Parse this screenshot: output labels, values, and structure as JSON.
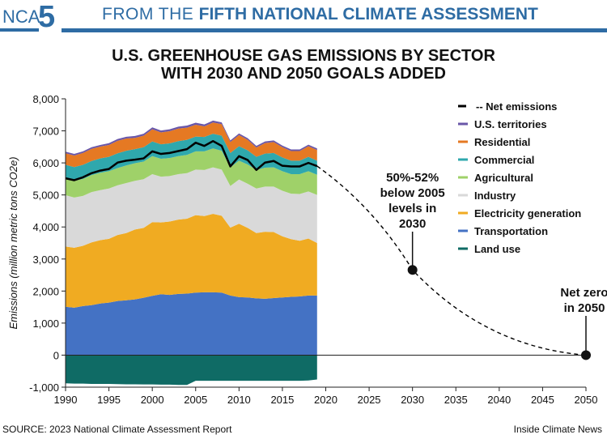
{
  "header": {
    "logo_text": "NCA",
    "logo_number": "5",
    "banner_prefix": "FROM THE ",
    "banner_bold": "FIFTH NATIONAL CLIMATE ASSESSMENT"
  },
  "footer": {
    "source": "SOURCE: 2023 National Climate Assessment Report",
    "credit": "Inside Climate News"
  },
  "chart_data": {
    "type": "area",
    "title_line1": "U.S. GREENHOUSE GAS EMISSIONS BY SECTOR",
    "title_line2": "WITH 2030 AND 2050 GOALS ADDED",
    "ylabel": "Emissions (million metric tons CO2e)",
    "xlabel": "",
    "xlim": [
      1990,
      2050
    ],
    "ylim": [
      -1000,
      8000
    ],
    "x_ticks": [
      1990,
      1995,
      2000,
      2005,
      2010,
      2015,
      2020,
      2025,
      2030,
      2035,
      2040,
      2045,
      2050
    ],
    "y_ticks": [
      {
        "value": -1000,
        "label": "-1,000"
      },
      {
        "value": 0,
        "label": "0"
      },
      {
        "value": 1000,
        "label": "1,000"
      },
      {
        "value": 2000,
        "label": "2,000"
      },
      {
        "value": 3000,
        "label": "3,000"
      },
      {
        "value": 4000,
        "label": "4,000"
      },
      {
        "value": 5000,
        "label": "5,000"
      },
      {
        "value": 6000,
        "label": "6,000"
      },
      {
        "value": 7000,
        "label": "7,000"
      },
      {
        "value": 8000,
        "label": "8,000"
      }
    ],
    "grid": false,
    "legend_position": "top-right",
    "years": [
      1990,
      1991,
      1992,
      1993,
      1994,
      1995,
      1996,
      1997,
      1998,
      1999,
      2000,
      2001,
      2002,
      2003,
      2004,
      2005,
      2006,
      2007,
      2008,
      2009,
      2010,
      2011,
      2012,
      2013,
      2014,
      2015,
      2016,
      2017,
      2018,
      2019
    ],
    "land_use": [
      -880,
      -890,
      -890,
      -900,
      -900,
      -900,
      -905,
      -910,
      -910,
      -915,
      -915,
      -920,
      -920,
      -930,
      -930,
      -800,
      -800,
      -800,
      -800,
      -800,
      -800,
      -800,
      -800,
      -800,
      -800,
      -800,
      -800,
      -800,
      -790,
      -760
    ],
    "series": [
      {
        "name": "Transportation",
        "color": "#4472c4",
        "values": [
          1510,
          1480,
          1530,
          1560,
          1610,
          1640,
          1690,
          1710,
          1740,
          1790,
          1850,
          1900,
          1880,
          1910,
          1920,
          1950,
          1960,
          1960,
          1950,
          1860,
          1810,
          1800,
          1770,
          1760,
          1780,
          1800,
          1820,
          1830,
          1860,
          1860
        ]
      },
      {
        "name": "Electricity generation",
        "color": "#f0ab22",
        "values": [
          1880,
          1870,
          1880,
          1960,
          1980,
          1990,
          2060,
          2100,
          2180,
          2180,
          2300,
          2240,
          2290,
          2320,
          2340,
          2420,
          2380,
          2450,
          2400,
          2120,
          2290,
          2170,
          2040,
          2090,
          2060,
          1910,
          1800,
          1740,
          1780,
          1640
        ]
      },
      {
        "name": "Industry",
        "color": "#d9d9d9",
        "values": [
          1600,
          1570,
          1560,
          1570,
          1560,
          1570,
          1550,
          1560,
          1520,
          1520,
          1500,
          1430,
          1420,
          1420,
          1420,
          1420,
          1440,
          1450,
          1440,
          1300,
          1380,
          1380,
          1390,
          1410,
          1420,
          1420,
          1420,
          1460,
          1470,
          1500
        ]
      },
      {
        "name": "Agricultural",
        "color": "#9fd169",
        "values": [
          520,
          520,
          530,
          530,
          540,
          540,
          540,
          550,
          550,
          550,
          560,
          560,
          560,
          560,
          570,
          570,
          580,
          590,
          590,
          580,
          590,
          600,
          580,
          590,
          600,
          610,
          610,
          620,
          630,
          630
        ]
      },
      {
        "name": "Commercial",
        "color": "#2fa8ad",
        "values": [
          430,
          430,
          440,
          440,
          450,
          450,
          460,
          460,
          440,
          450,
          460,
          450,
          460,
          470,
          470,
          460,
          450,
          460,
          470,
          450,
          450,
          440,
          410,
          440,
          450,
          430,
          420,
          420,
          450,
          440
        ]
      },
      {
        "name": "Residential",
        "color": "#e57923",
        "values": [
          360,
          360,
          370,
          380,
          370,
          370,
          390,
          380,
          350,
          360,
          380,
          370,
          380,
          390,
          380,
          370,
          330,
          350,
          360,
          340,
          350,
          330,
          290,
          330,
          340,
          320,
          300,
          300,
          330,
          330
        ]
      },
      {
        "name": "U.S. territories",
        "color": "#6a57a8",
        "values": [
          50,
          50,
          50,
          50,
          50,
          55,
          55,
          55,
          60,
          60,
          60,
          60,
          60,
          60,
          65,
          65,
          60,
          60,
          55,
          50,
          50,
          50,
          50,
          50,
          50,
          50,
          50,
          50,
          50,
          50
        ]
      }
    ],
    "net_emissions": {
      "name": "Net emissions",
      "values": [
        5520,
        5460,
        5550,
        5680,
        5760,
        5810,
        6010,
        6070,
        6100,
        6140,
        6360,
        6280,
        6310,
        6370,
        6430,
        6630,
        6530,
        6680,
        6530,
        5890,
        6210,
        6090,
        5780,
        6010,
        6060,
        5910,
        5890,
        5890,
        6000,
        5900
      ]
    },
    "projection": {
      "x": [
        2019,
        2030,
        2050
      ],
      "y": [
        5900,
        2660,
        0
      ]
    },
    "legend": [
      "Net emissions",
      "U.S. territories",
      "Residential",
      "Commercial",
      "Agricultural",
      "Industry",
      "Electricity generation",
      "Transportation",
      "Land use"
    ],
    "legend_colors": [
      "#000000",
      "#6a57a8",
      "#e57923",
      "#2fa8ad",
      "#9fd169",
      "#d9d9d9",
      "#f0ab22",
      "#4472c4",
      "#0f6b65"
    ],
    "annotations": [
      {
        "lines": [
          "50%-52%",
          "below 2005",
          "levels in",
          "2030"
        ],
        "x": 2030,
        "y": 2660
      },
      {
        "lines": [
          "Net zero",
          "in 2050"
        ],
        "x": 2050,
        "y": 0
      }
    ]
  }
}
